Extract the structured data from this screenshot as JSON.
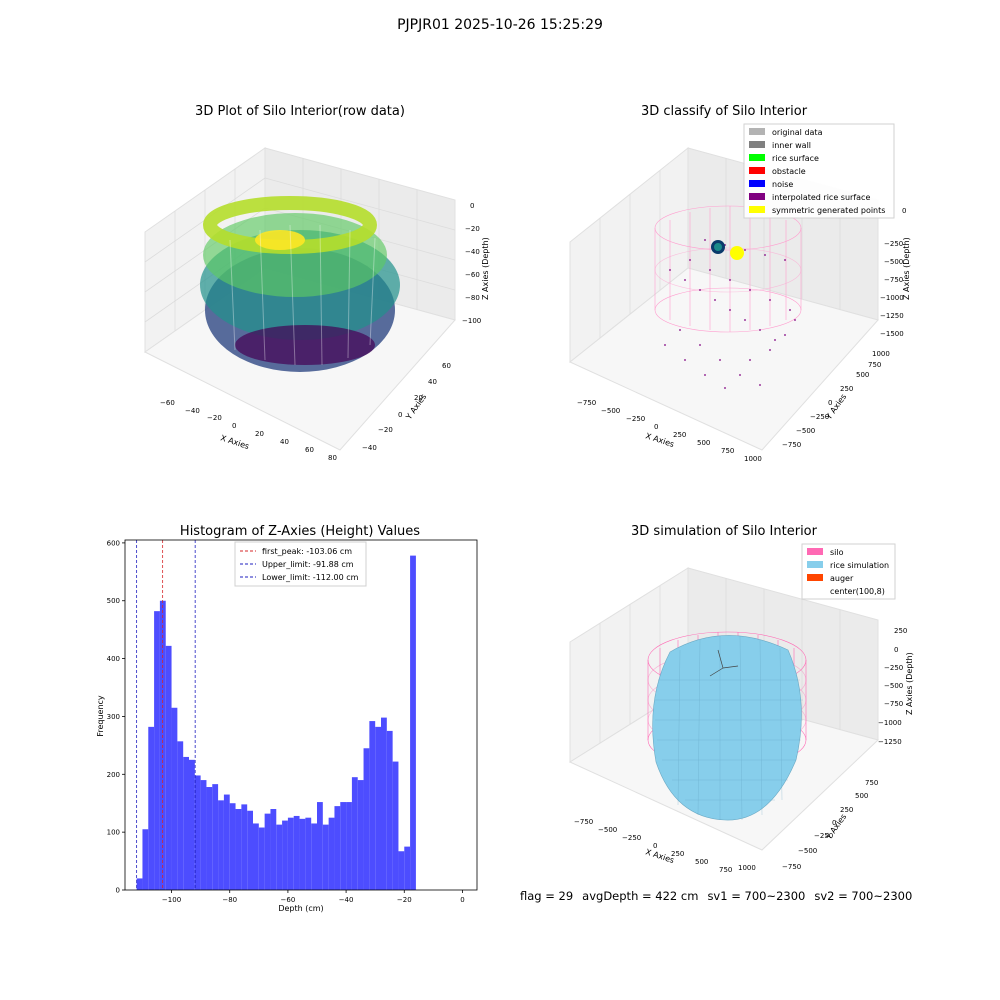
{
  "suptitle": "PJPJR01 2025-10-26 15:25:29",
  "colors": {
    "hist_bar": "#4d4dff",
    "peak_line": "#d62728",
    "limit_line": "#1f1fbf",
    "silo": "#ff69b4",
    "rice": "#87ceeb",
    "auger": "#ff4500",
    "original": "#b3b3b3",
    "inner_wall": "#808080",
    "rice_surface": "#00ff00",
    "obstacle": "#ff0000",
    "noise": "#0000ff",
    "interp": "#800080",
    "symmetric": "#ffff00"
  },
  "panels": {
    "raw": {
      "title": "3D Plot of Silo Interior(row data)",
      "xlabel": "X Axies",
      "ylabel": "Y Axies",
      "zlabel": "Z Axies (Depth)",
      "xticks": [
        "−60",
        "−40",
        "−20",
        "0",
        "20",
        "40",
        "60",
        "80"
      ],
      "yticks": [
        "−40",
        "−20",
        "0",
        "20",
        "40",
        "60"
      ],
      "zticks": [
        "0",
        "−20",
        "−40",
        "−60",
        "−80",
        "−100"
      ]
    },
    "classify": {
      "title": "3D classify of Silo Interior",
      "xlabel": "X Axies",
      "ylabel": "Y Axies",
      "zlabel": "Z Axies (Depth)",
      "xticks": [
        "−750",
        "−500",
        "−250",
        "0",
        "250",
        "500",
        "750",
        "1000"
      ],
      "yticks": [
        "−750",
        "−500",
        "−250",
        "0",
        "250",
        "500",
        "750",
        "1000"
      ],
      "zticks": [
        "0",
        "−250",
        "−500",
        "−750",
        "−1000",
        "−1250",
        "−1500"
      ],
      "legend": [
        {
          "label": "original data",
          "color": "#b3b3b3"
        },
        {
          "label": "inner wall",
          "color": "#808080"
        },
        {
          "label": "rice surface",
          "color": "#00ff00"
        },
        {
          "label": "obstacle",
          "color": "#ff0000"
        },
        {
          "label": "noise",
          "color": "#0000ff"
        },
        {
          "label": "interpolated rice surface",
          "color": "#800080"
        },
        {
          "label": "symmetric generated points",
          "color": "#ffff00"
        }
      ]
    },
    "simulation": {
      "title": "3D simulation of Silo Interior",
      "xlabel": "X Axies",
      "ylabel": "Y Axies",
      "zlabel": "Z Axies (Depth)",
      "xticks": [
        "−750",
        "−500",
        "−250",
        "0",
        "250",
        "500",
        "750",
        "1000"
      ],
      "yticks": [
        "−750",
        "−500",
        "−250",
        "0",
        "250",
        "500",
        "750"
      ],
      "zticks": [
        "250",
        "0",
        "−250",
        "−500",
        "−750",
        "−1000",
        "−1250"
      ],
      "legend": [
        {
          "label": "silo",
          "color": "#ff69b4"
        },
        {
          "label": "rice simulation",
          "color": "#87ceeb"
        },
        {
          "label": "auger",
          "color": "#ff4500"
        },
        {
          "label": "center(100,8)",
          "color": ""
        }
      ]
    }
  },
  "chart_data": [
    {
      "type": "bar",
      "title": "Histogram of Z-Axies (Height) Values",
      "xlabel": "Depth (cm)",
      "ylabel": "Frequency",
      "xlim": [
        -116,
        5
      ],
      "ylim": [
        0,
        605
      ],
      "xticks": [
        -100,
        -80,
        -60,
        -40,
        -20,
        0
      ],
      "xtick_labels": [
        "−100",
        "−80",
        "−60",
        "−40",
        "−20",
        "0"
      ],
      "yticks": [
        0,
        100,
        200,
        300,
        400,
        500,
        600
      ],
      "ytick_labels": [
        "0",
        "100",
        "200",
        "300",
        "400",
        "500",
        "600"
      ],
      "bin_start": -112,
      "bin_width": 2,
      "values": [
        20,
        105,
        282,
        482,
        500,
        422,
        315,
        257,
        230,
        225,
        198,
        190,
        178,
        183,
        155,
        165,
        150,
        140,
        148,
        137,
        115,
        108,
        132,
        140,
        113,
        120,
        125,
        128,
        123,
        125,
        115,
        152,
        113,
        125,
        145,
        152,
        152,
        195,
        190,
        245,
        292,
        282,
        298,
        275,
        222,
        67,
        75,
        578
      ],
      "vlines": [
        {
          "x": -103.06,
          "label": "first_peak: -103.06 cm",
          "style": "peak"
        },
        {
          "x": -91.88,
          "label": "Upper_limit: -91.88 cm",
          "style": "limit"
        },
        {
          "x": -112.0,
          "label": "Lower_limit: -112.00 cm",
          "style": "limit"
        }
      ],
      "legend_position": "top-center"
    }
  ],
  "footer": {
    "flag": "flag = 29",
    "avg": "avgDepth = 422 cm",
    "sv1": "sv1 = 700~2300",
    "sv2": "sv2 = 700~2300"
  }
}
